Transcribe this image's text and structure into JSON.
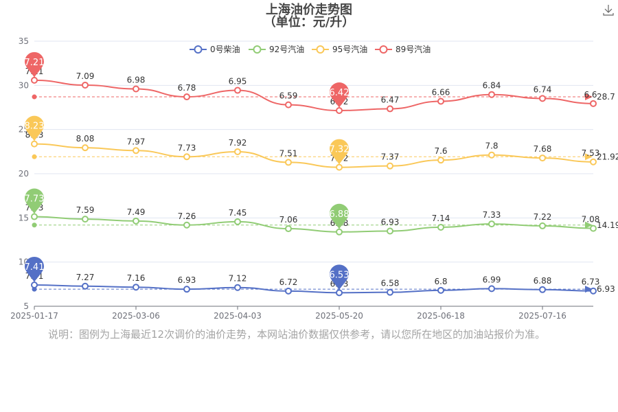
{
  "note": "说明：图例为上海最近12次调价的油价走势，本网站油价数据仅供参考，请以您所在地区的加油站报价为准。",
  "toolbar": {
    "download_icon": "download-icon"
  },
  "chart_data": {
    "type": "line",
    "title": "上海油价走势图",
    "subtitle": "（单位：元/升）",
    "ylim": [
      5,
      35
    ],
    "y_ticks": [
      5,
      10,
      15,
      20,
      25,
      30,
      35
    ],
    "x_tick_labels": [
      "2025-01-17",
      "2025-03-06",
      "2025-04-03",
      "2025-05-20",
      "2025-06-18",
      "2025-07-16"
    ],
    "x_tick_positions": [
      0,
      2,
      4,
      6,
      8,
      10
    ],
    "point_count": 12,
    "grid": true,
    "legend_position": "top",
    "smooth": true,
    "series": [
      {
        "name": "0号柴油",
        "color": "#5470c6",
        "label_values": [
          7.41,
          7.27,
          7.16,
          6.93,
          7.12,
          6.72,
          6.53,
          6.58,
          6.8,
          6.99,
          6.88,
          6.73
        ],
        "plot_values": [
          7.41,
          7.27,
          7.16,
          6.93,
          7.12,
          6.72,
          6.53,
          6.58,
          6.8,
          6.99,
          6.88,
          6.73
        ],
        "max_label": "7.41",
        "max_index": 0,
        "min_label": "6.53",
        "min_index": 6,
        "average": 6.93,
        "average_label": "6.93"
      },
      {
        "name": "92号汽油",
        "color": "#91cc75",
        "label_values": [
          7.73,
          7.59,
          7.49,
          7.26,
          7.45,
          7.06,
          6.88,
          6.93,
          7.14,
          7.33,
          7.22,
          7.08
        ],
        "plot_values": [
          15.14,
          14.86,
          14.65,
          14.19,
          14.57,
          13.78,
          13.41,
          13.51,
          13.94,
          14.32,
          14.1,
          13.81
        ],
        "max_label": "7.73",
        "max_index": 0,
        "min_label": "6.88",
        "min_index": 6,
        "average": 14.19,
        "average_label": "14.19"
      },
      {
        "name": "95号汽油",
        "color": "#fac858",
        "label_values": [
          8.23,
          8.08,
          7.97,
          7.73,
          7.92,
          7.51,
          7.32,
          7.37,
          7.6,
          7.8,
          7.68,
          7.53
        ],
        "plot_values": [
          23.37,
          22.94,
          22.62,
          21.92,
          22.49,
          21.29,
          20.73,
          20.88,
          21.54,
          22.12,
          21.78,
          21.34
        ],
        "max_label": "8.23",
        "max_index": 0,
        "min_label": "7.32",
        "min_index": 6,
        "average": 21.92,
        "average_label": "21.92"
      },
      {
        "name": "89号汽油",
        "color": "#ee6666",
        "label_values": [
          7.21,
          7.09,
          6.98,
          6.78,
          6.95,
          6.59,
          6.42,
          6.47,
          6.66,
          6.84,
          6.74,
          6.6
        ],
        "plot_values": [
          30.58,
          30.03,
          29.6,
          28.7,
          29.44,
          27.8,
          27.15,
          27.35,
          28.2,
          28.96,
          28.52,
          27.94
        ],
        "max_label": "7.21",
        "max_index": 0,
        "min_label": "6.42",
        "min_index": 6,
        "average": 28.7,
        "average_label": "28.7"
      }
    ]
  }
}
